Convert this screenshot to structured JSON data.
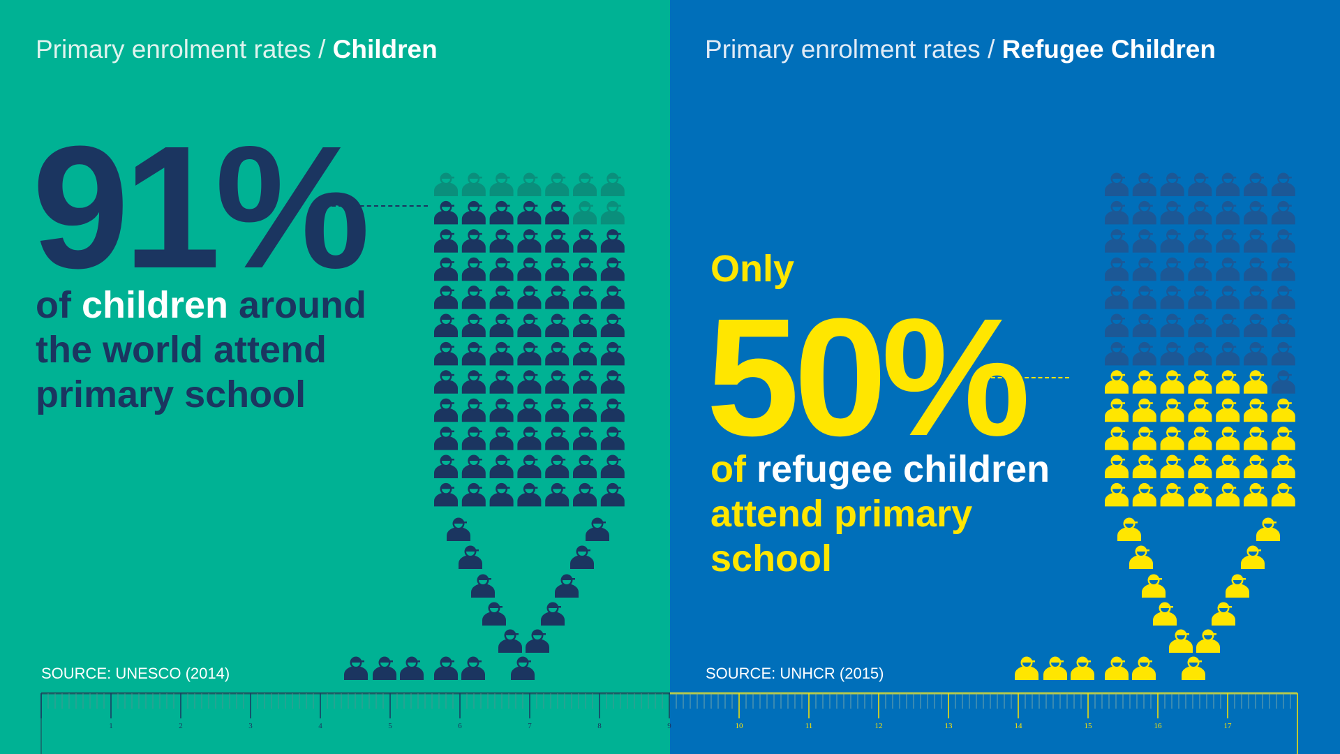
{
  "left": {
    "title_prefix": "Primary enrolment rates / ",
    "title_bold": "Children",
    "percent": "91%",
    "desc": {
      "l1a": "of ",
      "l1b": "children",
      "l1c": " around",
      "l2": "the world attend",
      "l3": "primary school"
    },
    "source": "SOURCE: UNESCO (2014)",
    "enrolled_percent": 91,
    "colors": {
      "bg": "#00b294",
      "filled": "#1b3560",
      "empty": "#0a8f7c"
    }
  },
  "right": {
    "title_prefix": "Primary enrolment rates / ",
    "title_bold": "Refugee Children",
    "only": "Only",
    "percent": "50%",
    "desc": {
      "l1a": "of ",
      "l1b": "refugee children",
      "l2": "attend primary",
      "l3": "school"
    },
    "source": "SOURCE: UNHCR (2015)",
    "enrolled_percent": 50,
    "colors": {
      "bg": "#006fba",
      "filled": "#ffe600",
      "empty": "#1c5896"
    }
  },
  "ruler": {
    "labels": [
      "1",
      "2",
      "3",
      "4",
      "5",
      "6",
      "7",
      "8",
      "9",
      "10",
      "11",
      "12",
      "13",
      "14",
      "15",
      "16",
      "17"
    ]
  }
}
